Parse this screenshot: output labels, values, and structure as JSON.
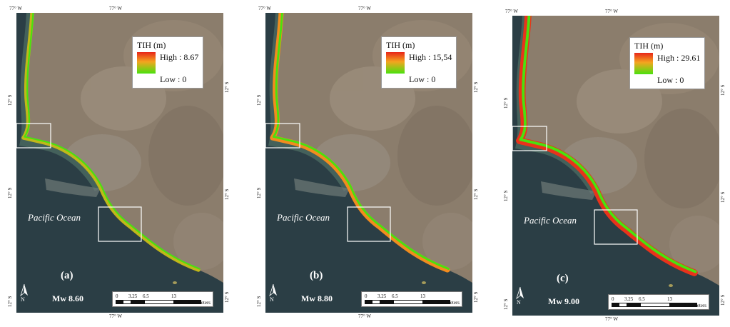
{
  "grid": {
    "lon": "77° W",
    "lat": "12° S"
  },
  "ocean_label": "Pacific Ocean",
  "legend_title": "TIH (m)",
  "scale": {
    "ticks": [
      "0",
      "3.25",
      "6.5",
      "13"
    ],
    "unit": "Kilometers"
  },
  "north_label": "N",
  "colors": {
    "high": "#e8261a",
    "mid": "#f4a51f",
    "low": "#49e10f",
    "ocean": "#2b3e45",
    "land": "#8b7d6c"
  },
  "panels": [
    {
      "letter": "(a)",
      "magnitude": "Mw 8.60",
      "high": "High : 8.67",
      "low": "Low : 0",
      "intensity": 0.35
    },
    {
      "letter": "(b)",
      "magnitude": "Mw 8.80",
      "high": "High : 15,54",
      "low": "Low : 0",
      "intensity": 0.6
    },
    {
      "letter": "(c)",
      "magnitude": "Mw 9.00",
      "high": "High : 29.61",
      "low": "Low : 0",
      "intensity": 0.95
    }
  ]
}
